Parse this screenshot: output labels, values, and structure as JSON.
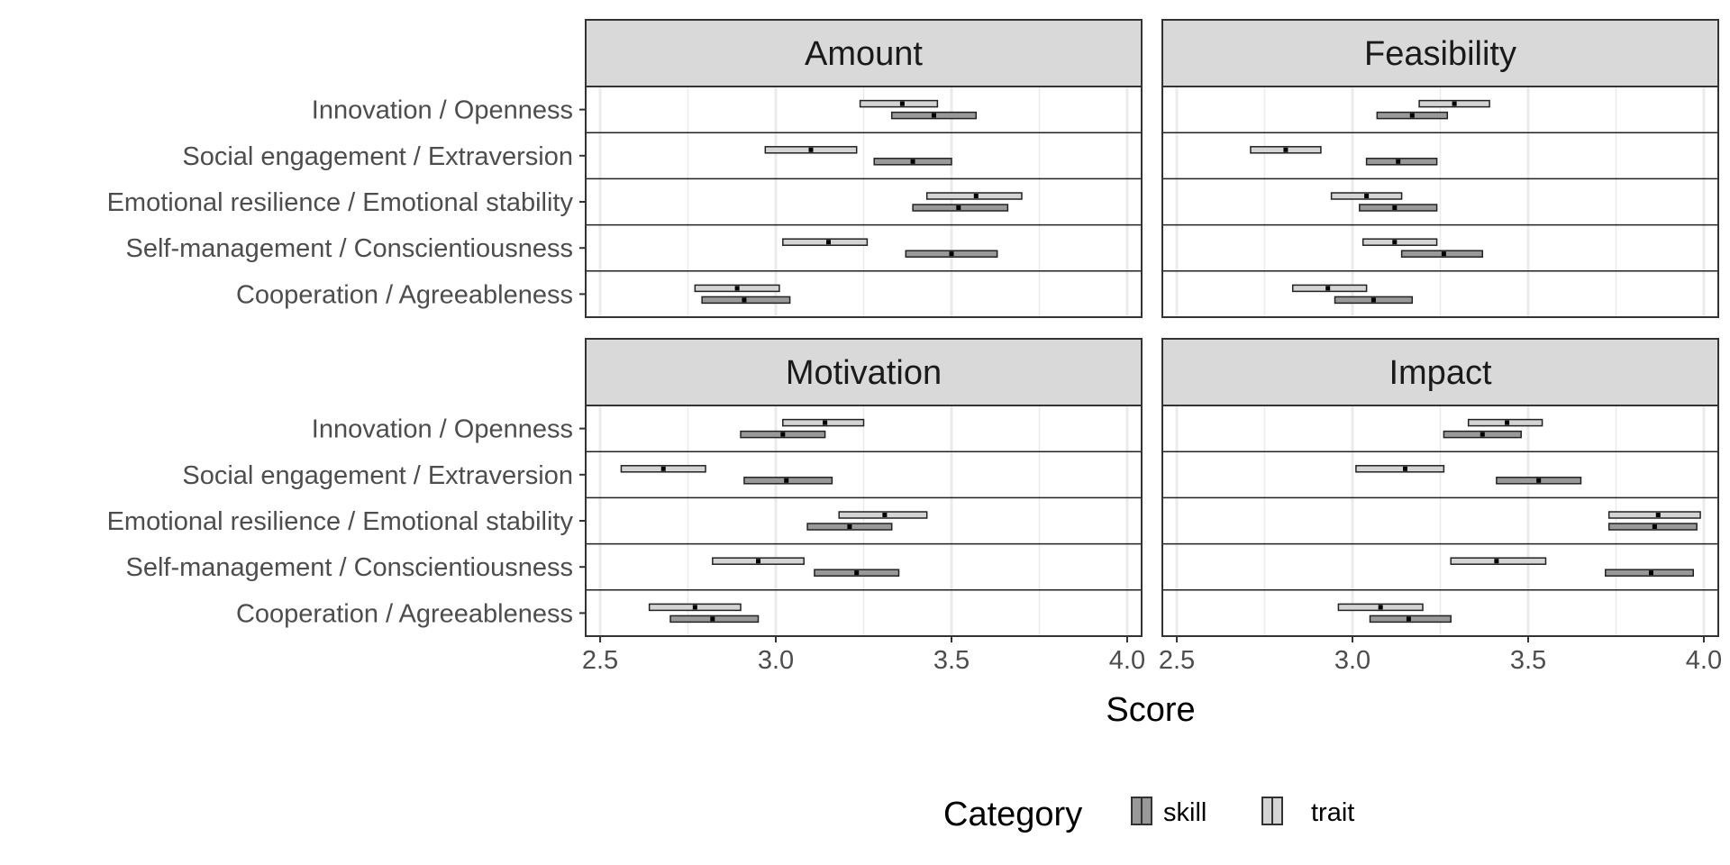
{
  "chart_data": {
    "type": "bar",
    "subtype": "faceted floating crossbar (mean with interval)",
    "xlabel": "Score",
    "xlim": [
      2.5,
      4.0
    ],
    "x_ticks": [
      "2.5",
      "3.0",
      "3.5",
      "4.0"
    ],
    "grid": true,
    "legend_position": "bottom",
    "legend": {
      "title": "Category",
      "entries": [
        "skill",
        "trait"
      ]
    },
    "categories": [
      "Innovation / Openness",
      "Social engagement / Extraversion",
      "Emotional resilience / Emotional stability",
      "Self-management / Conscientiousness",
      "Cooperation / Agreeableness"
    ],
    "colors": {
      "skill": "#999999",
      "trait": "#d4d4d4",
      "strip": "#d9d9d9",
      "grid": "#ebebeb",
      "border": "#333333"
    },
    "panels": [
      {
        "title": "Amount",
        "series": [
          {
            "name": "trait",
            "values": [
              {
                "mean": 3.36,
                "lo": 3.24,
                "hi": 3.46
              },
              {
                "mean": 3.1,
                "lo": 2.97,
                "hi": 3.23
              },
              {
                "mean": 3.57,
                "lo": 3.43,
                "hi": 3.7
              },
              {
                "mean": 3.15,
                "lo": 3.02,
                "hi": 3.26
              },
              {
                "mean": 2.89,
                "lo": 2.77,
                "hi": 3.01
              }
            ]
          },
          {
            "name": "skill",
            "values": [
              {
                "mean": 3.45,
                "lo": 3.33,
                "hi": 3.57
              },
              {
                "mean": 3.39,
                "lo": 3.28,
                "hi": 3.5
              },
              {
                "mean": 3.52,
                "lo": 3.39,
                "hi": 3.66
              },
              {
                "mean": 3.5,
                "lo": 3.37,
                "hi": 3.63
              },
              {
                "mean": 2.91,
                "lo": 2.79,
                "hi": 3.04
              }
            ]
          }
        ]
      },
      {
        "title": "Feasibility",
        "series": [
          {
            "name": "trait",
            "values": [
              {
                "mean": 3.29,
                "lo": 3.19,
                "hi": 3.39
              },
              {
                "mean": 2.81,
                "lo": 2.71,
                "hi": 2.91
              },
              {
                "mean": 3.04,
                "lo": 2.94,
                "hi": 3.14
              },
              {
                "mean": 3.12,
                "lo": 3.03,
                "hi": 3.24
              },
              {
                "mean": 2.93,
                "lo": 2.83,
                "hi": 3.04
              }
            ]
          },
          {
            "name": "skill",
            "values": [
              {
                "mean": 3.17,
                "lo": 3.07,
                "hi": 3.27
              },
              {
                "mean": 3.13,
                "lo": 3.04,
                "hi": 3.24
              },
              {
                "mean": 3.12,
                "lo": 3.02,
                "hi": 3.24
              },
              {
                "mean": 3.26,
                "lo": 3.14,
                "hi": 3.37
              },
              {
                "mean": 3.06,
                "lo": 2.95,
                "hi": 3.17
              }
            ]
          }
        ]
      },
      {
        "title": "Motivation",
        "series": [
          {
            "name": "trait",
            "values": [
              {
                "mean": 3.14,
                "lo": 3.02,
                "hi": 3.25
              },
              {
                "mean": 2.68,
                "lo": 2.56,
                "hi": 2.8
              },
              {
                "mean": 3.31,
                "lo": 3.18,
                "hi": 3.43
              },
              {
                "mean": 2.95,
                "lo": 2.82,
                "hi": 3.08
              },
              {
                "mean": 2.77,
                "lo": 2.64,
                "hi": 2.9
              }
            ]
          },
          {
            "name": "skill",
            "values": [
              {
                "mean": 3.02,
                "lo": 2.9,
                "hi": 3.14
              },
              {
                "mean": 3.03,
                "lo": 2.91,
                "hi": 3.16
              },
              {
                "mean": 3.21,
                "lo": 3.09,
                "hi": 3.33
              },
              {
                "mean": 3.23,
                "lo": 3.11,
                "hi": 3.35
              },
              {
                "mean": 2.82,
                "lo": 2.7,
                "hi": 2.95
              }
            ]
          }
        ]
      },
      {
        "title": "Impact",
        "series": [
          {
            "name": "trait",
            "values": [
              {
                "mean": 3.44,
                "lo": 3.33,
                "hi": 3.54
              },
              {
                "mean": 3.15,
                "lo": 3.01,
                "hi": 3.26
              },
              {
                "mean": 3.87,
                "lo": 3.73,
                "hi": 3.99
              },
              {
                "mean": 3.41,
                "lo": 3.28,
                "hi": 3.55
              },
              {
                "mean": 3.08,
                "lo": 2.96,
                "hi": 3.2
              }
            ]
          },
          {
            "name": "skill",
            "values": [
              {
                "mean": 3.37,
                "lo": 3.26,
                "hi": 3.48
              },
              {
                "mean": 3.53,
                "lo": 3.41,
                "hi": 3.65
              },
              {
                "mean": 3.86,
                "lo": 3.73,
                "hi": 3.98
              },
              {
                "mean": 3.85,
                "lo": 3.72,
                "hi": 3.97
              },
              {
                "mean": 3.16,
                "lo": 3.05,
                "hi": 3.28
              }
            ]
          }
        ]
      }
    ]
  }
}
